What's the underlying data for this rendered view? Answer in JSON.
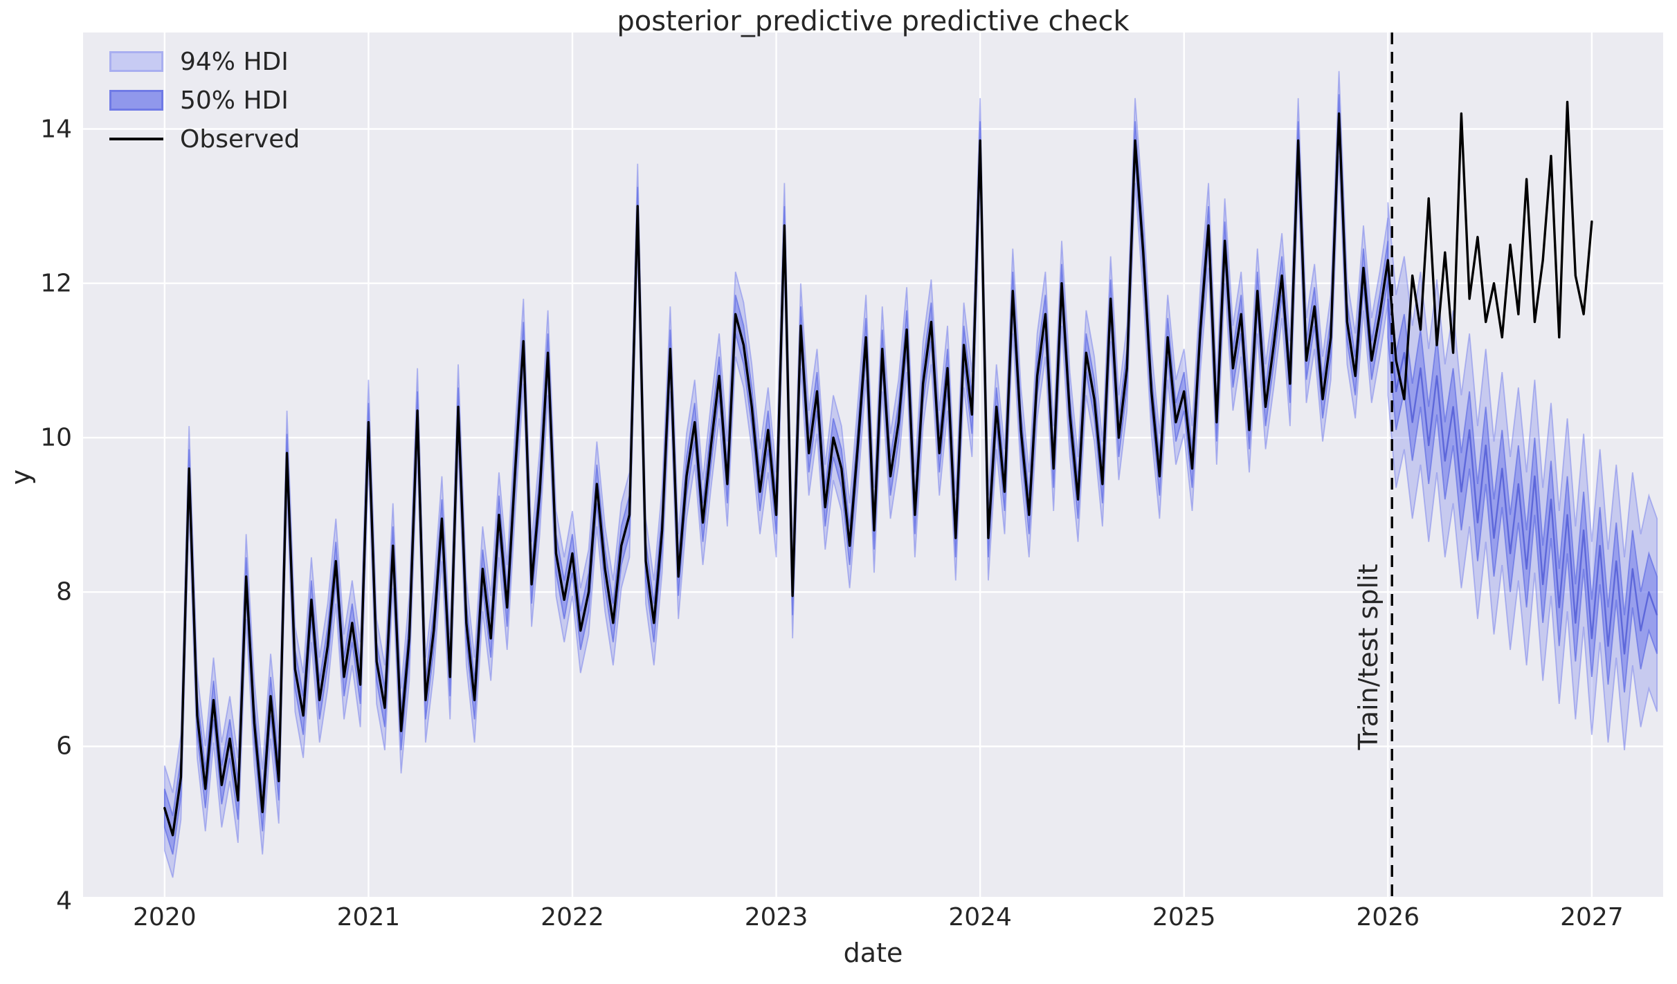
{
  "chart_data": {
    "type": "line",
    "title": "posterior_predictive predictive check",
    "xlabel": "date",
    "ylabel": "y",
    "xlim": [
      2019.6,
      2027.35
    ],
    "ylim": [
      4.05,
      15.25
    ],
    "xticks": [
      2020,
      2021,
      2022,
      2023,
      2024,
      2025,
      2026,
      2027
    ],
    "yticks": [
      4,
      6,
      8,
      10,
      12,
      14
    ],
    "grid": true,
    "plot_bg": "#ebebf1",
    "grid_color": "#ffffff",
    "colors": {
      "observed": "#000000",
      "hdi94_fill": "rgba(123,133,235,0.32)",
      "hdi94_edge": "rgba(123,133,235,0.55)",
      "hdi50_fill": "rgba(113,124,233,0.55)",
      "hdi50_edge": "rgba(96,108,228,0.70)",
      "forecast_mean": "#5a64d9",
      "split_line": "#000000"
    },
    "legend": {
      "position": "upper left",
      "entries": [
        {
          "label": "94% HDI",
          "swatch": "band-light"
        },
        {
          "label": "50% HDI",
          "swatch": "band-dark"
        },
        {
          "label": "Observed",
          "swatch": "line-black"
        }
      ]
    },
    "split": {
      "x": 2026.02,
      "label": "Train/test split"
    },
    "series": {
      "observed": {
        "x_start": 2020.0,
        "x_step": 0.04,
        "values": [
          5.2,
          4.85,
          5.6,
          9.6,
          6.4,
          5.45,
          6.6,
          5.5,
          6.1,
          5.3,
          8.2,
          6.3,
          5.15,
          6.65,
          5.55,
          9.8,
          7.0,
          6.4,
          7.9,
          6.6,
          7.3,
          8.4,
          6.9,
          7.6,
          6.8,
          10.2,
          7.1,
          6.5,
          8.6,
          6.2,
          7.4,
          10.35,
          6.6,
          7.5,
          8.95,
          6.9,
          10.4,
          7.6,
          6.6,
          8.3,
          7.4,
          9.0,
          7.8,
          9.6,
          11.25,
          8.1,
          9.3,
          11.1,
          8.5,
          7.9,
          8.5,
          7.5,
          8.0,
          9.4,
          8.3,
          7.6,
          8.6,
          9.0,
          13.0,
          8.4,
          7.6,
          8.8,
          11.15,
          8.2,
          9.5,
          10.2,
          8.9,
          9.9,
          10.8,
          9.4,
          11.6,
          11.2,
          10.4,
          9.3,
          10.1,
          9.0,
          12.75,
          7.95,
          11.45,
          9.8,
          10.6,
          9.1,
          10.0,
          9.6,
          8.6,
          9.9,
          11.3,
          8.8,
          11.15,
          9.5,
          10.2,
          11.4,
          9.0,
          10.7,
          11.5,
          9.8,
          10.9,
          8.7,
          11.2,
          10.3,
          13.85,
          8.7,
          10.4,
          9.3,
          11.9,
          10.1,
          9.0,
          10.8,
          11.6,
          9.6,
          12.0,
          10.3,
          9.2,
          11.1,
          10.5,
          9.4,
          11.8,
          10.0,
          10.9,
          13.85,
          12.4,
          10.6,
          9.5,
          11.3,
          10.2,
          10.6,
          9.6,
          11.4,
          12.75,
          10.2,
          12.55,
          10.9,
          11.6,
          10.1,
          11.9,
          10.4,
          11.2,
          12.1,
          10.7,
          13.85,
          11.0,
          11.7,
          10.5,
          11.3,
          14.2,
          11.5,
          10.8,
          12.2,
          11.0,
          11.6,
          12.3,
          11.0,
          10.5,
          12.1,
          11.4,
          13.1,
          11.2,
          12.4,
          11.1,
          14.2,
          11.8,
          12.6,
          11.5,
          12.0,
          11.3,
          12.5,
          11.6,
          13.35,
          11.5,
          12.3,
          13.65,
          11.3,
          14.35,
          12.1,
          11.6,
          12.8
        ]
      },
      "in_sample_hdi": {
        "follows": "observed",
        "ends_at_x": 2026.0,
        "hdi94_halfwidth": 0.55,
        "hdi50_halfwidth": 0.25
      },
      "forecast_hdi": {
        "x_start": 2026.0,
        "x_step": 0.04,
        "mean": [
          11.8,
          10.6,
          11.1,
          10.2,
          10.9,
          9.9,
          10.8,
          9.7,
          10.4,
          9.3,
          10.1,
          8.9,
          9.9,
          8.7,
          9.6,
          8.5,
          9.4,
          8.3,
          9.5,
          8.1,
          9.2,
          7.8,
          9.0,
          7.6,
          8.8,
          7.4,
          8.6,
          7.3,
          8.4,
          7.2,
          8.3,
          7.5,
          8.0,
          7.7
        ],
        "hdi94_halfwidth": 1.25,
        "hdi50_halfwidth": 0.5
      }
    }
  }
}
